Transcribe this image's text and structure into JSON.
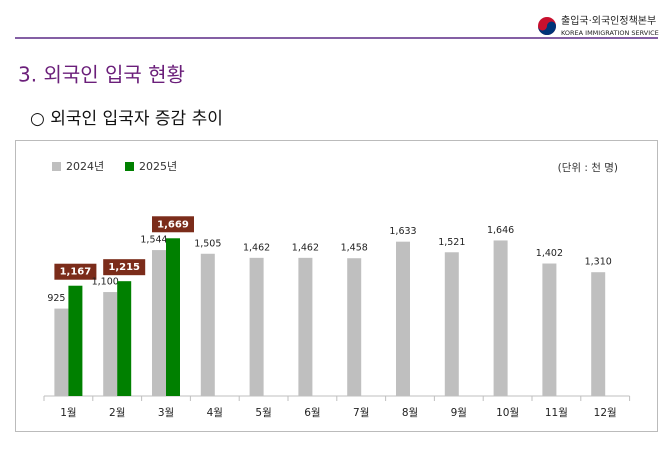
{
  "header": {
    "org": "출입국·외국인정책본부",
    "org_en": "KOREA IMMIGRATION SERVICE"
  },
  "section_title": "3. 외국인 입국 현황",
  "subtitle": "○ 외국인 입국자 증감 추이",
  "chart_data": {
    "type": "bar",
    "unit_note": "(단위 : 천 명)",
    "categories": [
      "1월",
      "2월",
      "3월",
      "4월",
      "5월",
      "6월",
      "7월",
      "8월",
      "9월",
      "10월",
      "11월",
      "12월"
    ],
    "series": [
      {
        "name": "2024년",
        "color": "#bfbfbf",
        "values": [
          925,
          1100,
          1544,
          1505,
          1462,
          1462,
          1458,
          1633,
          1521,
          1646,
          1402,
          1310
        ],
        "value_labels": [
          "925",
          "1,100",
          "1,544",
          "1,505",
          "1,462",
          "1,462",
          "1,458",
          "1,633",
          "1,521",
          "1,646",
          "1,402",
          "1,310"
        ]
      },
      {
        "name": "2025년",
        "color": "#008000",
        "values": [
          1167,
          1215,
          1669,
          null,
          null,
          null,
          null,
          null,
          null,
          null,
          null,
          null
        ],
        "value_labels": [
          "1,167",
          "1,215",
          "1,669",
          null,
          null,
          null,
          null,
          null,
          null,
          null,
          null,
          null
        ]
      }
    ],
    "label_box_color": "#7b2c1a",
    "ylim": [
      0,
      2000
    ],
    "legend": "top-left"
  }
}
